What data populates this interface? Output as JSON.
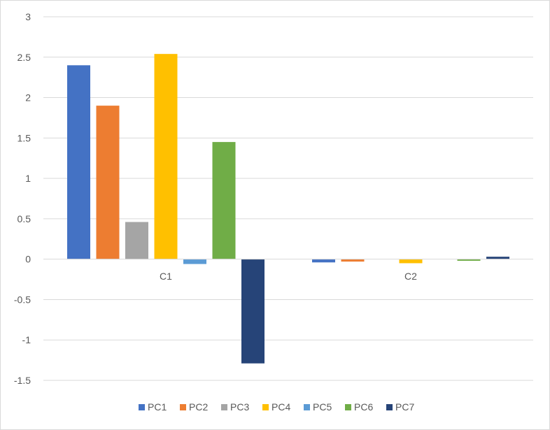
{
  "chart_data": {
    "type": "bar",
    "categories": [
      "C1",
      "C2"
    ],
    "series": [
      {
        "name": "PC1",
        "color": "#4472C4",
        "values": [
          2.4,
          -0.04
        ]
      },
      {
        "name": "PC2",
        "color": "#ED7D31",
        "values": [
          1.9,
          -0.03
        ]
      },
      {
        "name": "PC3",
        "color": "#A5A5A5",
        "values": [
          0.46,
          0.0
        ]
      },
      {
        "name": "PC4",
        "color": "#FFC000",
        "values": [
          2.54,
          -0.05
        ]
      },
      {
        "name": "PC5",
        "color": "#5B9BD5",
        "values": [
          -0.06,
          0.0
        ]
      },
      {
        "name": "PC6",
        "color": "#70AD47",
        "values": [
          1.45,
          -0.02
        ]
      },
      {
        "name": "PC7",
        "color": "#264478",
        "values": [
          -1.29,
          0.03
        ]
      }
    ],
    "title": "",
    "xlabel": "",
    "ylabel": "",
    "ylim": [
      -1.5,
      3
    ],
    "yticks": [
      3,
      2.5,
      2,
      1.5,
      1,
      0.5,
      0,
      -0.5,
      -1,
      -1.5
    ],
    "ytick_labels": [
      "3",
      "2.5",
      "2",
      "1.5",
      "1",
      "0.5",
      "0",
      "-0.5",
      "-1",
      "-1.5"
    ],
    "grid": true,
    "legend_position": "bottom"
  }
}
